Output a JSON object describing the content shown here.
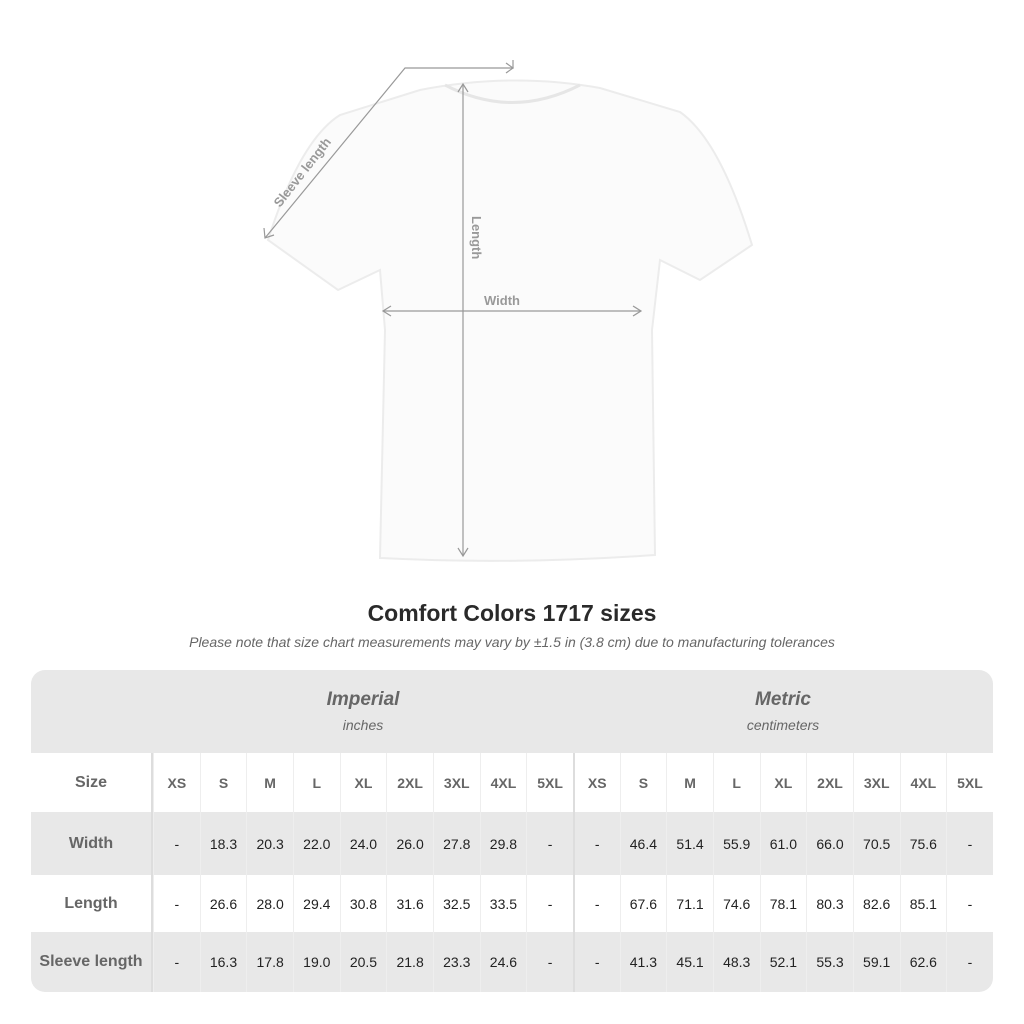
{
  "diagram": {
    "labels": {
      "sleeve": "Sleeve length",
      "length": "Length",
      "width": "Width"
    }
  },
  "title": "Comfort Colors 1717 sizes",
  "note": "Please note that size chart measurements may vary by ±1.5 in (3.8 cm) due to manufacturing tolerances",
  "table": {
    "imperial": {
      "title": "Imperial",
      "unit": "inches"
    },
    "metric": {
      "title": "Metric",
      "unit": "centimeters"
    },
    "size_label": "Size",
    "sizes": [
      "XS",
      "S",
      "M",
      "L",
      "XL",
      "2XL",
      "3XL",
      "4XL",
      "5XL"
    ],
    "rows": [
      {
        "label": "Width",
        "imperial": [
          "-",
          "18.3",
          "20.3",
          "22.0",
          "24.0",
          "26.0",
          "27.8",
          "29.8",
          "-"
        ],
        "metric": [
          "-",
          "46.4",
          "51.4",
          "55.9",
          "61.0",
          "66.0",
          "70.5",
          "75.6",
          "-"
        ]
      },
      {
        "label": "Length",
        "imperial": [
          "-",
          "26.6",
          "28.0",
          "29.4",
          "30.8",
          "31.6",
          "32.5",
          "33.5",
          "-"
        ],
        "metric": [
          "-",
          "67.6",
          "71.1",
          "74.6",
          "78.1",
          "80.3",
          "82.6",
          "85.1",
          "-"
        ]
      },
      {
        "label": "Sleeve length",
        "imperial": [
          "-",
          "16.3",
          "17.8",
          "19.0",
          "20.5",
          "21.8",
          "23.3",
          "24.6",
          "-"
        ],
        "metric": [
          "-",
          "41.3",
          "45.1",
          "48.3",
          "52.1",
          "55.3",
          "59.1",
          "62.6",
          "-"
        ]
      }
    ]
  }
}
